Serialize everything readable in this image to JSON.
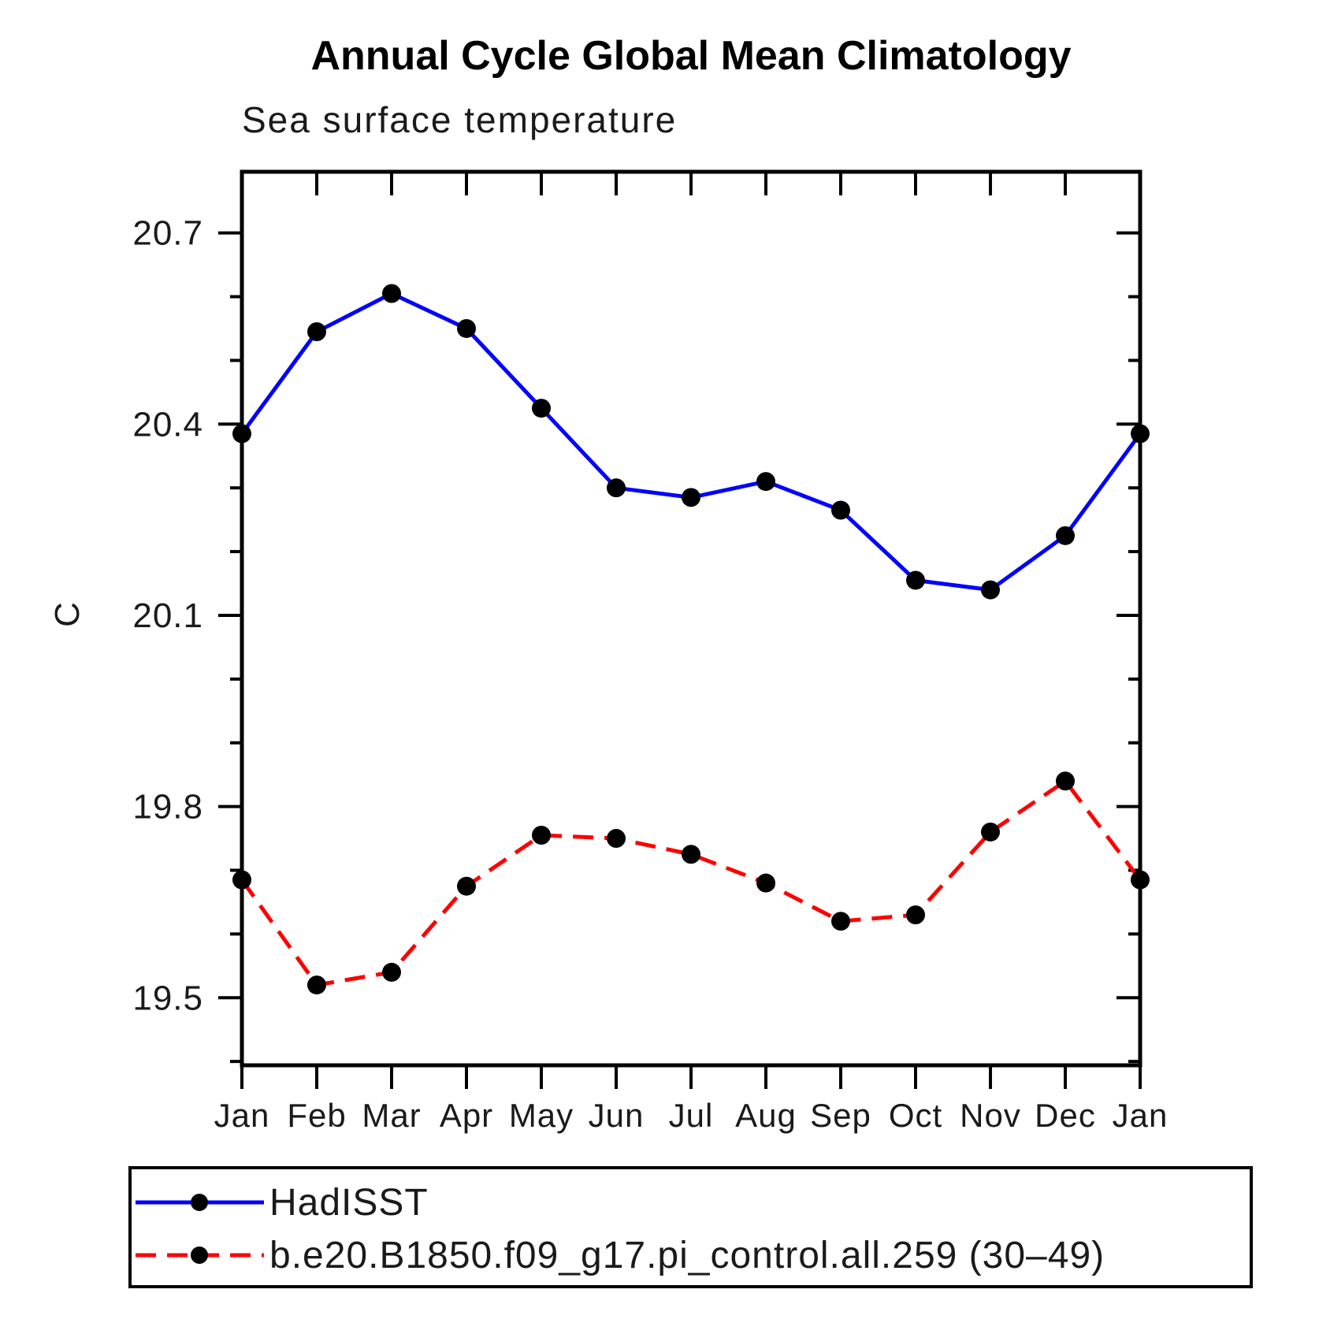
{
  "title": "Annual Cycle Global Mean Climatology",
  "subtitle": "Sea surface temperature",
  "chart_data": {
    "type": "line",
    "categories": [
      "Jan",
      "Feb",
      "Mar",
      "Apr",
      "May",
      "Jun",
      "Jul",
      "Aug",
      "Sep",
      "Oct",
      "Nov",
      "Dec",
      "Jan"
    ],
    "xlabel": "",
    "ylabel": "C",
    "ylim": [
      19.394,
      20.796
    ],
    "yticks_major": [
      19.5,
      19.8,
      20.1,
      20.4,
      20.7
    ],
    "ytick_labels": [
      "19.5",
      "19.8",
      "20.1",
      "20.4",
      "20.7"
    ],
    "yticks_minor": [
      19.4,
      19.6,
      19.7,
      19.9,
      20.0,
      20.2,
      20.3,
      20.5,
      20.6
    ],
    "grid": false,
    "legend_position": "bottom",
    "series": [
      {
        "name": "HadISST",
        "color": "#0000ff",
        "line_style": "solid",
        "marker": "circle",
        "marker_color": "#000000",
        "values": [
          20.385,
          20.545,
          20.605,
          20.55,
          20.425,
          20.3,
          20.285,
          20.31,
          20.265,
          20.155,
          20.14,
          20.225,
          20.385
        ]
      },
      {
        "name": "b.e20.B1850.f09_g17.pi_control.all.259 (30–49)",
        "color": "#ff0000",
        "line_style": "dashed",
        "marker": "circle",
        "marker_color": "#000000",
        "values": [
          19.685,
          19.52,
          19.54,
          19.675,
          19.755,
          19.75,
          19.725,
          19.68,
          19.62,
          19.63,
          19.76,
          19.84,
          19.685
        ]
      }
    ]
  }
}
